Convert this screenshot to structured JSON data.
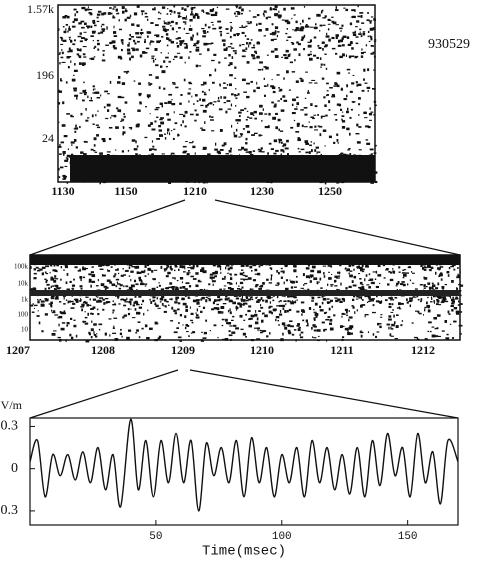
{
  "figure_label": "930529",
  "chart_data": [
    {
      "type": "spectrogram",
      "y_tick_labels": [
        "1.57k",
        "196",
        "24"
      ],
      "x_tick_labels": [
        "1130",
        "1150",
        "1210",
        "1230",
        "1250"
      ]
    },
    {
      "type": "spectrogram",
      "y_tick_labels": [
        "100k",
        "10k",
        "1k",
        "100",
        "10"
      ],
      "x_tick_labels": [
        "1207",
        "1208",
        "1209",
        "1210",
        "1211",
        "1212"
      ]
    },
    {
      "type": "line",
      "ylabel": "V/m",
      "xlabel": "Time(msec)",
      "xlim": [
        0,
        170
      ],
      "ylim": [
        -0.4,
        0.36
      ],
      "xticks": [
        50,
        100,
        150
      ],
      "yticks": [
        0.3,
        0,
        -0.3
      ],
      "color": "#111111",
      "x": [
        0,
        3,
        6,
        9,
        12,
        15,
        18,
        21,
        24,
        27,
        30,
        33,
        36,
        40,
        43,
        46,
        49,
        52,
        55,
        58,
        61,
        64,
        67,
        70,
        73,
        76,
        79,
        82,
        85,
        88,
        91,
        94,
        97,
        100,
        103,
        106,
        109,
        112,
        115,
        118,
        121,
        124,
        127,
        130,
        133,
        136,
        139,
        142,
        145,
        148,
        151,
        154,
        157,
        160,
        163,
        166,
        170
      ],
      "values": [
        0.05,
        0.2,
        -0.2,
        0.1,
        -0.05,
        0.1,
        -0.08,
        0.12,
        -0.1,
        0.15,
        -0.15,
        0.1,
        -0.27,
        0.35,
        -0.15,
        0.2,
        -0.2,
        0.2,
        -0.1,
        0.25,
        -0.1,
        0.2,
        -0.3,
        0.18,
        -0.05,
        0.15,
        -0.1,
        0.2,
        -0.2,
        0.22,
        -0.1,
        0.15,
        -0.2,
        0.1,
        -0.1,
        0.15,
        -0.2,
        0.2,
        -0.1,
        0.15,
        -0.15,
        0.1,
        -0.18,
        0.15,
        -0.2,
        0.2,
        -0.12,
        0.25,
        -0.05,
        0.15,
        -0.2,
        0.25,
        -0.1,
        0.12,
        -0.25,
        0.2,
        0.05
      ]
    }
  ]
}
